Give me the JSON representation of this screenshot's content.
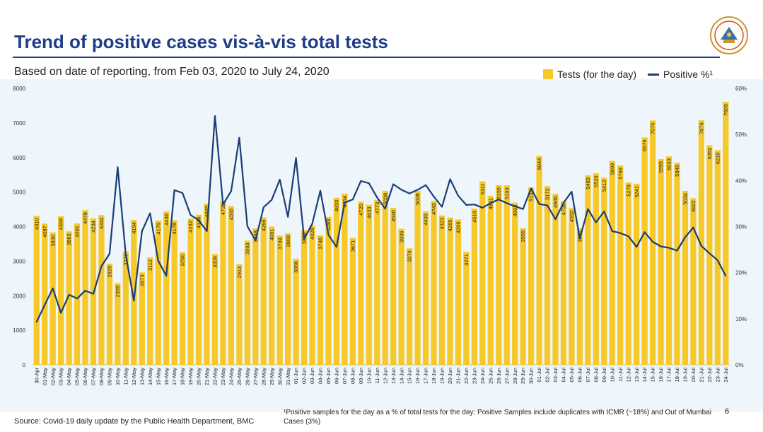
{
  "title": "Trend of positive cases vis-à-vis total tests",
  "subtitle": "Based on date of reporting, from Feb 03, 2020 to July 24, 2020",
  "legend": {
    "bar_label": "Tests (for the day)",
    "line_label": "Positive %¹"
  },
  "source": "Source: Covid-19 daily update by the Public Health Department, BMC",
  "footnote": "¹Positive samples for the day as a % of total tests for the day; Positive Samples include duplicates with ICMR (~18%) and Out of Mumbai Cases (3%)",
  "page_number": "6",
  "colors": {
    "bar": "#f6c929",
    "line": "#1a3e75",
    "title": "#1f3c8a",
    "background": "#eef5fb"
  },
  "logo": {
    "icon": "municipal-seal-icon"
  },
  "chart_data": {
    "type": "bar",
    "title": "Trend of positive cases vis-à-vis total tests",
    "xlabel": "",
    "ylabel": "",
    "y2label": "",
    "ylim": [
      0,
      8000
    ],
    "y2lim": [
      0,
      60
    ],
    "y_ticks": [
      "0",
      "1000",
      "2000",
      "3000",
      "4000",
      "5000",
      "6000",
      "7000",
      "8000"
    ],
    "y2_ticks": [
      "0%",
      "10%",
      "20%",
      "30%",
      "40%",
      "50%",
      "60%"
    ],
    "categories": [
      "30-Apr",
      "01-May",
      "02-May",
      "03-May",
      "04-May",
      "05-May",
      "06-May",
      "07-May",
      "08-May",
      "09-May",
      "10-May",
      "11-May",
      "12-May",
      "13-May",
      "14-May",
      "15-May",
      "16-May",
      "17-May",
      "18-May",
      "19-May",
      "20-May",
      "21-May",
      "22-May",
      "23-May",
      "24-May",
      "25-May",
      "26-May",
      "27-May",
      "28-May",
      "29-May",
      "30-May",
      "31-May",
      "01-Jun",
      "02-Jun",
      "03-Jun",
      "04-Jun",
      "05-Jun",
      "06-Jun",
      "07-Jun",
      "08-Jun",
      "09-Jun",
      "10-Jun",
      "11-Jun",
      "12-Jun",
      "13-Jun",
      "14-Jun",
      "15-Jun",
      "16-Jun",
      "17-Jun",
      "18-Jun",
      "19-Jun",
      "20-Jun",
      "21-Jun",
      "22-Jun",
      "23-Jun",
      "24-Jun",
      "25-Jun",
      "26-Jun",
      "27-Jun",
      "28-Jun",
      "29-Jun",
      "30-Jun",
      "01-Jul",
      "02-Jul",
      "03-Jul",
      "04-Jul",
      "05-Jul",
      "06-Jul",
      "07-Jul",
      "08-Jul",
      "09-Jul",
      "10-Jul",
      "11-Jul",
      "12-Jul",
      "13-Jul",
      "14-Jul",
      "15-Jul",
      "16-Jul",
      "17-Jul",
      "18-Jul",
      "19-Jul",
      "20-Jul",
      "21-Jul",
      "22-Jul",
      "23-Jul",
      "24-Jul"
    ],
    "series": [
      {
        "name": "Tests (for the day)",
        "type": "bar",
        "values": [
          4310,
          4087,
          3830,
          4304,
          3862,
          4091,
          4478,
          4234,
          4332,
          2929,
          2359,
          3277,
          4194,
          2673,
          3112,
          4176,
          4436,
          4178,
          3260,
          4232,
          4346,
          4665,
          3209,
          4738,
          4592,
          2913,
          3593,
          3948,
          4266,
          4001,
          3739,
          3808,
          3066,
          3896,
          4028,
          3748,
          4283,
          4833,
          4954,
          3671,
          4720,
          4633,
          4773,
          5038,
          4540,
          3936,
          3370,
          5028,
          4439,
          4743,
          4323,
          4265,
          4206,
          3271,
          4518,
          5311,
          4891,
          5199,
          5193,
          4693,
          3955,
          5131,
          6044,
          5172,
          4945,
          4736,
          4532,
          3951,
          5483,
          5539,
          5412,
          5899,
          5769,
          5278,
          5241,
          6579,
          7070,
          5955,
          6033,
          5849,
          5034,
          4822,
          7076,
          6352,
          6210,
          7609
        ]
      },
      {
        "name": "Positive %",
        "type": "line",
        "axis": "secondary",
        "values": [
          9.3,
          13,
          16.6,
          11.3,
          15.2,
          14.4,
          16.1,
          15.4,
          21.4,
          24.1,
          42.9,
          24,
          13.9,
          29,
          32.9,
          22.6,
          19.3,
          37.9,
          37.3,
          32.5,
          31.4,
          29,
          54,
          34.8,
          37.7,
          49.3,
          30.1,
          27,
          34.2,
          35.8,
          40.2,
          32.1,
          44.9,
          27.3,
          30.6,
          37.8,
          28.2,
          25.6,
          35.2,
          35.9,
          39.9,
          39.4,
          36.3,
          33.9,
          39.2,
          38,
          37.2,
          38,
          39,
          36.5,
          34.3,
          40.3,
          36.7,
          34.7,
          34.8,
          34.1,
          35.1,
          35.9,
          35.1,
          34.4,
          33.8,
          38.3,
          34.9,
          34.6,
          31.6,
          35.2,
          37.6,
          27.4,
          33.8,
          30.9,
          33.3,
          29,
          28.6,
          27.9,
          25.6,
          28.8,
          26.7,
          25.7,
          25.4,
          24.8,
          27.7,
          29.8,
          25.8,
          24.2,
          22.7,
          19.3
        ]
      }
    ]
  }
}
